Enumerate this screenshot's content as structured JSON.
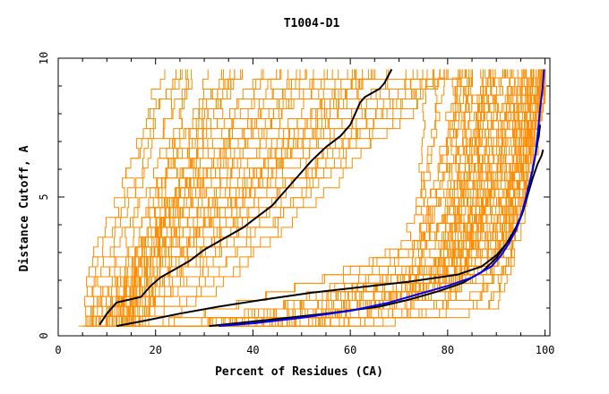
{
  "chart_data": {
    "type": "line",
    "title": "T1004-D1",
    "xlabel": "Percent of Residues (CA)",
    "ylabel": "Distance Cutoff, A",
    "xlim": [
      0,
      101
    ],
    "ylim": [
      0,
      10
    ],
    "x_ticks": [
      "0",
      "20",
      "40",
      "60",
      "80",
      "100"
    ],
    "y_ticks": [
      "0",
      "5",
      "10"
    ],
    "grid": false,
    "legend": "none",
    "colors": {
      "bundle": "#ff8c00",
      "highlight": "#000000",
      "best": "#0000ff",
      "frame": "#000000"
    },
    "series": [
      {
        "color": "#000000",
        "x": [
          8.5,
          10,
          12,
          17,
          18,
          19,
          21,
          24,
          27,
          30,
          34,
          38,
          41,
          44,
          46,
          48,
          50,
          52,
          55,
          58,
          60,
          61,
          62,
          63,
          64,
          66,
          67,
          68.5
        ],
        "y": [
          0.4,
          0.8,
          1.2,
          1.4,
          1.6,
          1.8,
          2.1,
          2.4,
          2.7,
          3.1,
          3.5,
          3.9,
          4.3,
          4.7,
          5.1,
          5.5,
          5.9,
          6.3,
          6.8,
          7.2,
          7.6,
          8.0,
          8.4,
          8.6,
          8.7,
          8.9,
          9.1,
          9.6
        ]
      },
      {
        "color": "#000000",
        "x": [
          12,
          18,
          25,
          33,
          42,
          52,
          62,
          72,
          82,
          87,
          90,
          92,
          94,
          95.5,
          96.5,
          97.5,
          98.2,
          98.8,
          99
        ],
        "y": [
          0.35,
          0.55,
          0.8,
          1.05,
          1.3,
          1.55,
          1.75,
          1.95,
          2.2,
          2.5,
          2.9,
          3.3,
          3.8,
          4.5,
          5.3,
          6.0,
          6.7,
          7.3,
          7.6
        ]
      },
      {
        "color": "#000000",
        "x": [
          31,
          42,
          55,
          66,
          72,
          78,
          83,
          87,
          90,
          92,
          94,
          95.5,
          96.5,
          97.5,
          98.5,
          99.3,
          99.6
        ],
        "y": [
          0.35,
          0.55,
          0.8,
          1.05,
          1.3,
          1.6,
          1.9,
          2.3,
          2.8,
          3.3,
          3.9,
          4.5,
          5.1,
          5.7,
          6.2,
          6.5,
          6.7
        ]
      },
      {
        "color": "#0000ff",
        "x": [
          33,
          40,
          50,
          60,
          68,
          74,
          80,
          85,
          89,
          91,
          92.5,
          94,
          95,
          96,
          97,
          98,
          98.5,
          99,
          99.5,
          99.8
        ],
        "y": [
          0.35,
          0.45,
          0.65,
          0.9,
          1.2,
          1.5,
          1.8,
          2.1,
          2.5,
          2.9,
          3.3,
          3.8,
          4.3,
          4.9,
          5.6,
          6.5,
          7.3,
          8.2,
          8.9,
          9.6
        ]
      }
    ]
  }
}
